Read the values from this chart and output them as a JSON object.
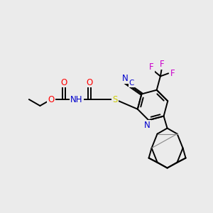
{
  "background_color": "#ebebeb",
  "bond_color": "#000000",
  "figsize": [
    3.0,
    3.0
  ],
  "dpi": 100,
  "colors": {
    "O": "#ff0000",
    "N": "#0000cd",
    "S": "#cccc00",
    "F": "#cc00cc",
    "C_label": "#0000cd",
    "bond": "#000000",
    "bond_light": "#888888"
  }
}
